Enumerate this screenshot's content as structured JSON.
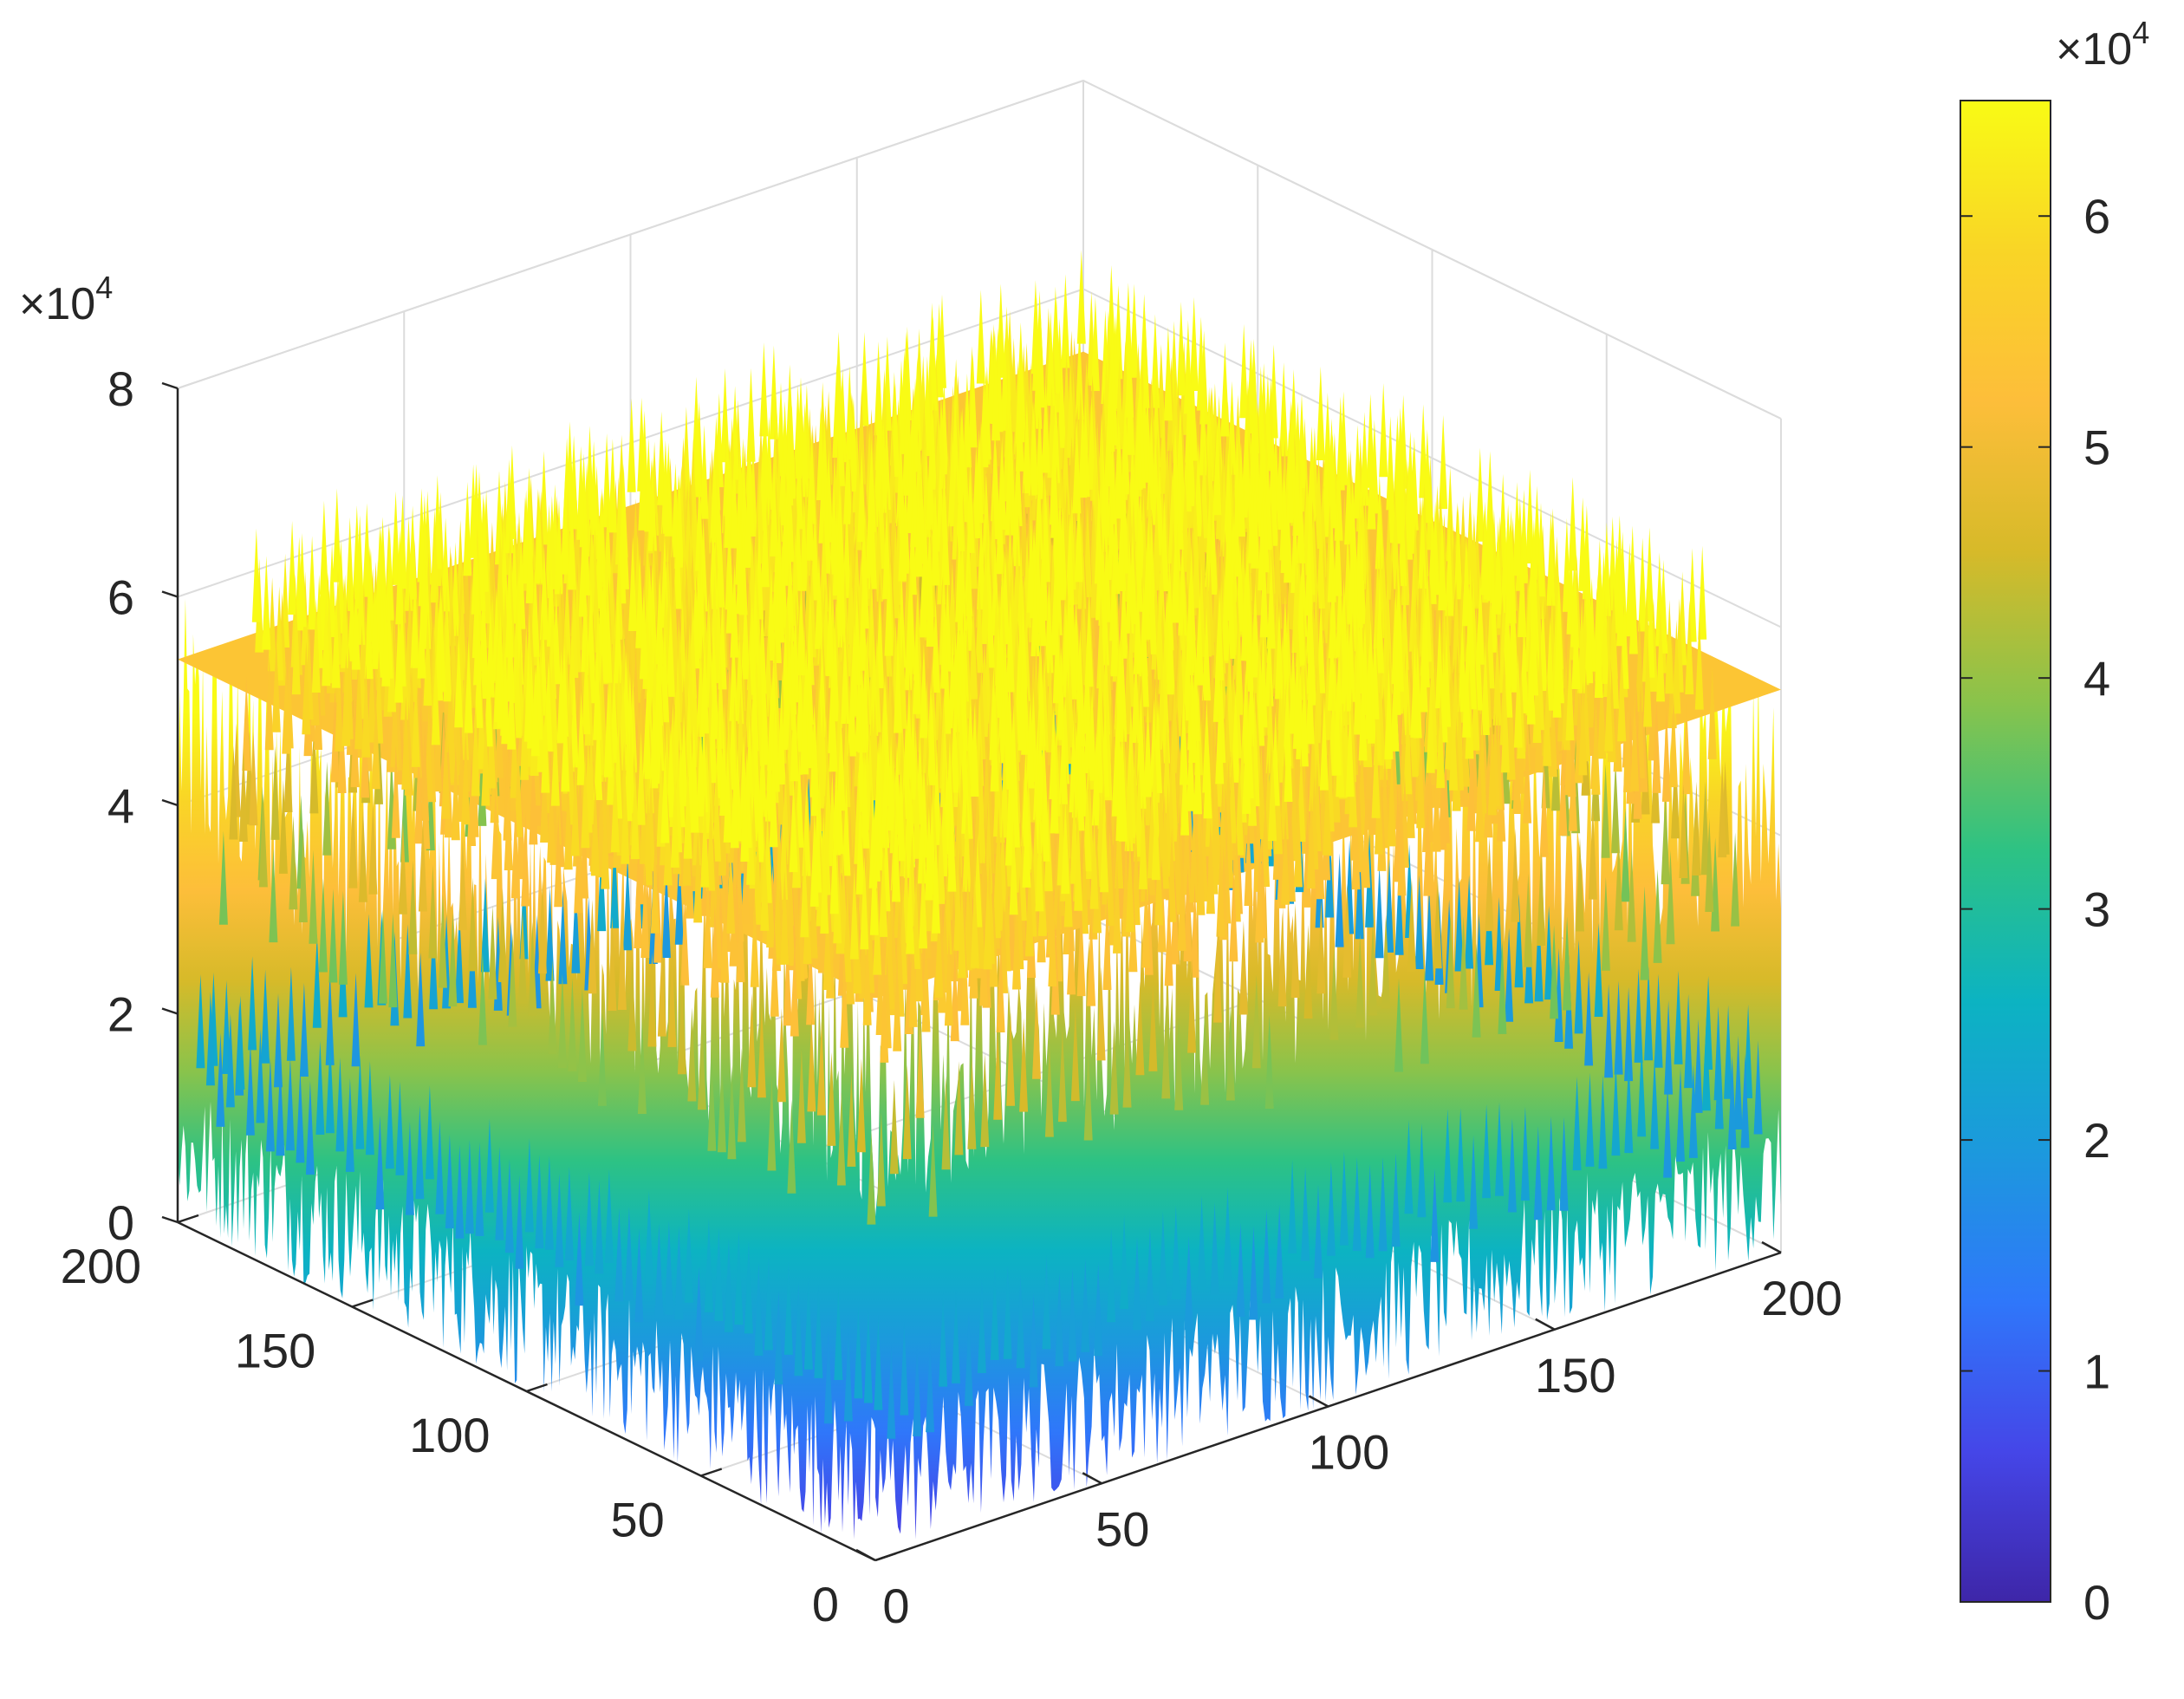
{
  "chart_data": {
    "type": "surface3d",
    "title": "",
    "xlabel": "",
    "ylabel": "",
    "zlabel": "",
    "x_range": [
      0,
      200
    ],
    "y_range": [
      0,
      200
    ],
    "z_range": [
      0,
      80000
    ],
    "x_ticks": [
      "0",
      "50",
      "100",
      "150",
      "200"
    ],
    "y_ticks": [
      "0",
      "50",
      "100",
      "150",
      "200"
    ],
    "z_ticks": [
      "0",
      "2",
      "4",
      "6",
      "8"
    ],
    "z_exponent": "×10",
    "z_exponent_power": "4",
    "surface": {
      "grid_size": 200,
      "base_value": 0,
      "peak_mean": 60000,
      "peak_max": 68000,
      "description_shape": "noisy plateau with steep sides"
    },
    "grid": true,
    "colormap": "parula",
    "colorbar": {
      "location": "right",
      "range": [
        0,
        65000
      ],
      "ticks": [
        "0",
        "1",
        "2",
        "3",
        "4",
        "5",
        "6"
      ],
      "exponent": "×10",
      "exponent_power": "4",
      "colors": [
        "#3e26a8",
        "#4546e8",
        "#2f77fa",
        "#1c99dd",
        "#0cb3c2",
        "#2dc284",
        "#8ac34b",
        "#d7ba29",
        "#fdbe3a",
        "#f9d526",
        "#f9fb15"
      ]
    }
  }
}
